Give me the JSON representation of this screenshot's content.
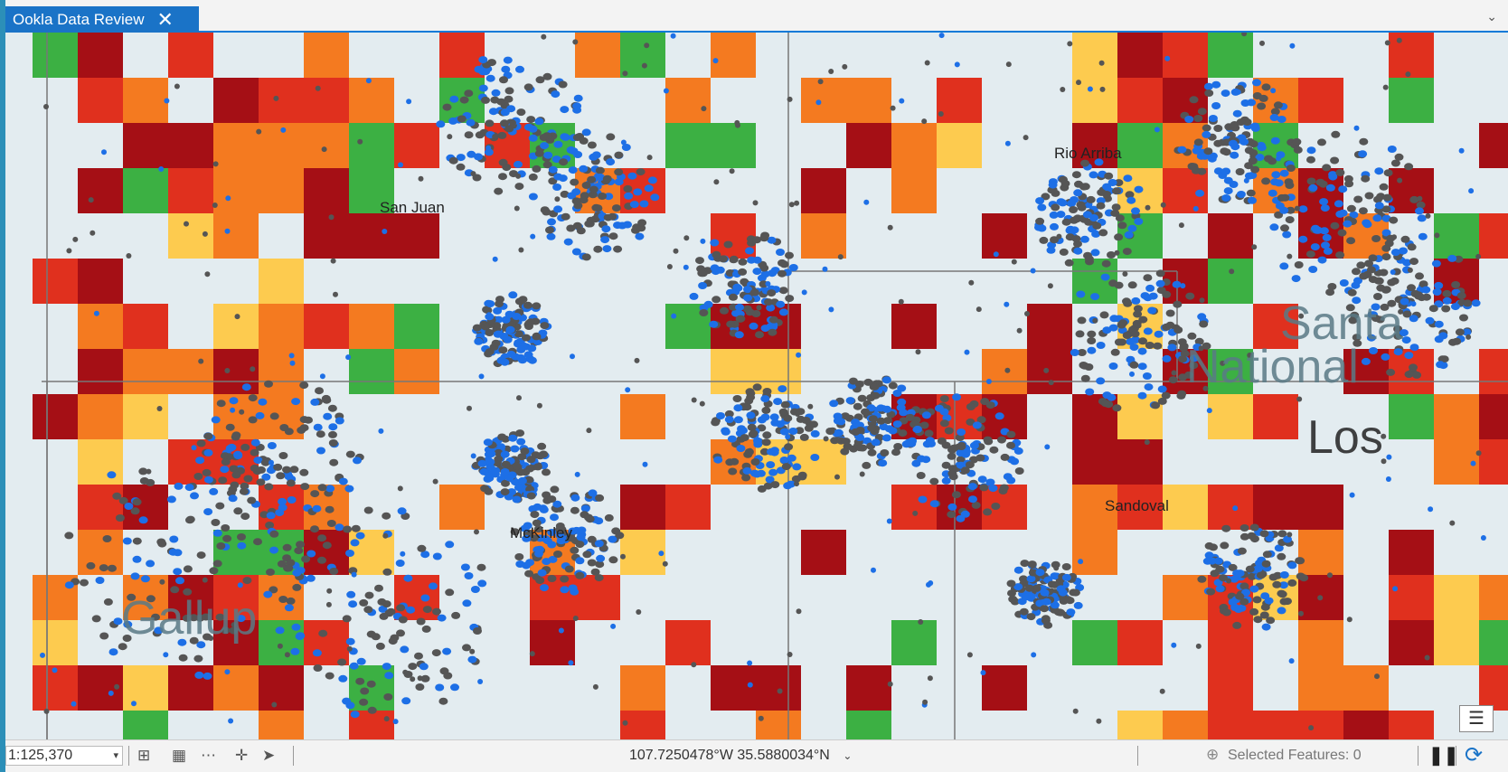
{
  "tab": {
    "title": "Ookla Data Review",
    "close_glyph": "✕",
    "menu_glyph": "⌄"
  },
  "map": {
    "county_labels": [
      "San Juan",
      "Rio Arriba",
      "McKinley",
      "Sandoval"
    ],
    "basemap_labels": [
      "Santa",
      "National",
      "Los",
      "Gallup"
    ],
    "colors": {
      "background": "#e3ecf0",
      "dark_red": "#a50f15",
      "red": "#e0301e",
      "orange": "#f47a20",
      "yellow": "#fdcb4f",
      "green": "#3cb043",
      "dark_green": "#1a8a2a",
      "point_gray": "#555555",
      "point_blue": "#1d6fe6"
    }
  },
  "status": {
    "scale": "1:125,370",
    "coords": "107.7250478°W 35.5880034°N",
    "selected": "Selected Features: 0",
    "pause_glyph": "❚❚",
    "refresh_glyph": "⟳"
  }
}
